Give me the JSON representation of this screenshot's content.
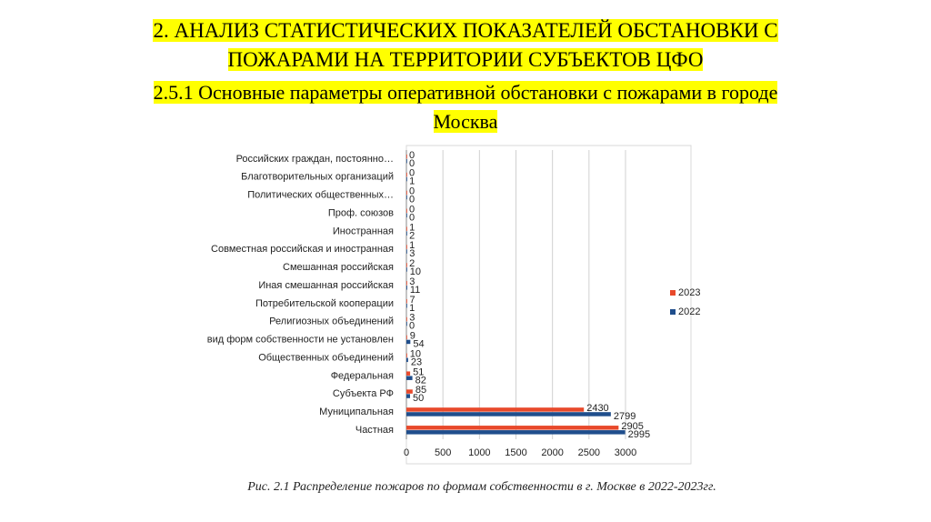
{
  "heading": [
    "2. АНАЛИЗ СТАТИСТИЧЕСКИХ ПОКАЗАТЕЛЕЙ ОБСТАНОВКИ С",
    "ПОЖАРАМИ НА ТЕРРИТОРИИ СУБЪЕКТОВ ЦФО"
  ],
  "subheading": [
    "2.5.1 Основные параметры оперативной обстановки с пожарами в городе",
    "Москва"
  ],
  "caption": "Рис. 2.1 Распределение пожаров по формам собственности в г. Москве в 2022-2023гг.",
  "chart_data": {
    "type": "hbar",
    "categories": [
      "Российских граждан, постоянно…",
      "Благотворительных организаций",
      "Политических общественных…",
      "Проф. союзов",
      "Иностранная",
      "Совместная российская и иностранная",
      "Смешанная российская",
      "Иная смешанная российская",
      "Потребительской кооперации",
      "Религиозных объединений",
      "вид форм собственности не установлен",
      "Общественных объединений",
      "Федеральная",
      "Субъекта РФ",
      "Муниципальная",
      "Частная"
    ],
    "series": [
      {
        "name": "2023",
        "color": "#e8492b",
        "values": [
          0,
          0,
          0,
          0,
          1,
          1,
          2,
          3,
          7,
          3,
          9,
          10,
          51,
          85,
          2430,
          2905
        ]
      },
      {
        "name": "2022",
        "color": "#1f4e8c",
        "values": [
          0,
          1,
          0,
          0,
          2,
          3,
          10,
          11,
          1,
          0,
          54,
          23,
          82,
          50,
          2799,
          2995
        ]
      }
    ],
    "xlim": [
      0,
      3000
    ],
    "xticks": [
      0,
      500,
      1000,
      1500,
      2000,
      2500,
      3000
    ],
    "grid": true,
    "legend": "right"
  }
}
